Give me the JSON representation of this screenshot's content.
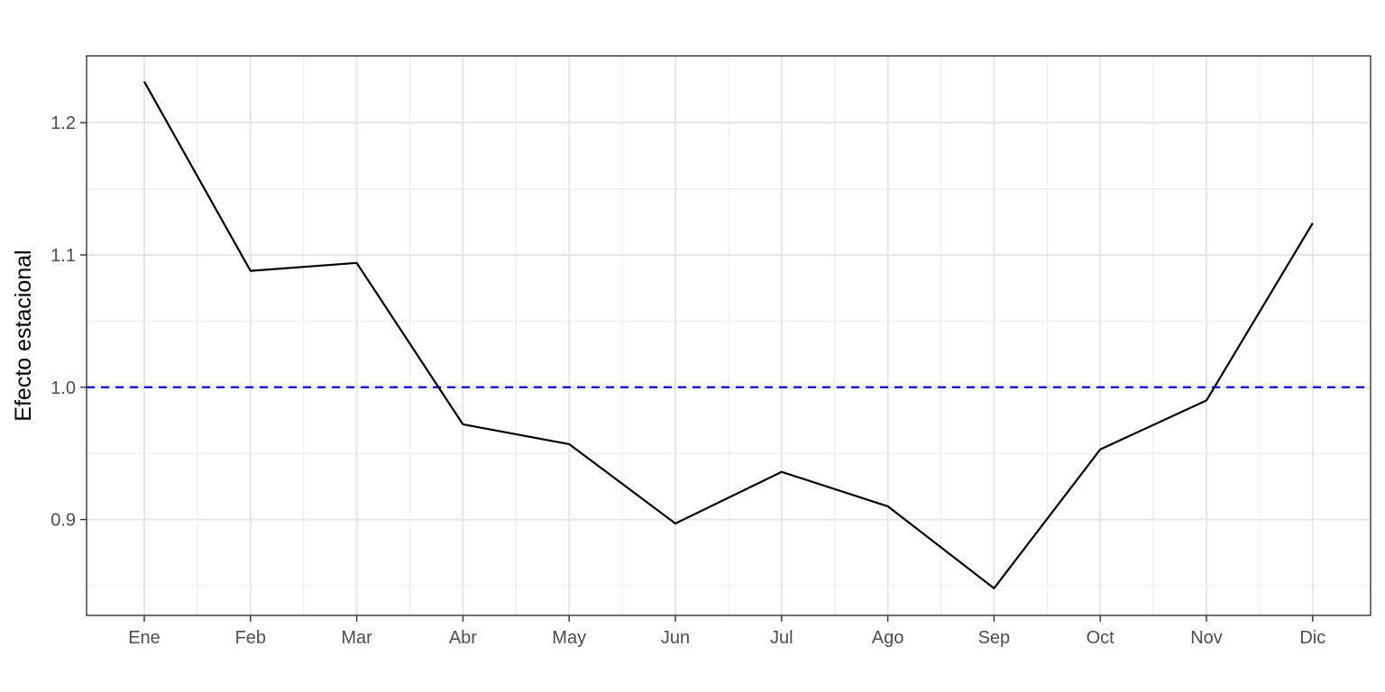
{
  "chart_data": {
    "type": "line",
    "title": "",
    "xlabel": "",
    "ylabel": "Efecto estacional",
    "categories": [
      "Ene",
      "Feb",
      "Mar",
      "Abr",
      "May",
      "Jun",
      "Jul",
      "Ago",
      "Sep",
      "Oct",
      "Nov",
      "Dic"
    ],
    "series": [
      {
        "values": [
          1.231,
          1.088,
          1.094,
          0.972,
          0.957,
          0.897,
          0.936,
          0.91,
          0.848,
          0.953,
          0.99,
          1.124
        ],
        "color": "#000000"
      }
    ],
    "reference_line": {
      "y": 1.0,
      "color": "#0000ff",
      "style": "dashed"
    },
    "yticks": [
      0.9,
      1.0,
      1.1,
      1.2
    ],
    "ytick_labels": [
      "0.9",
      "1.0",
      "1.1",
      "1.2"
    ],
    "ylim": [
      0.8275,
      1.2505
    ],
    "grid": true,
    "legend": "none"
  }
}
